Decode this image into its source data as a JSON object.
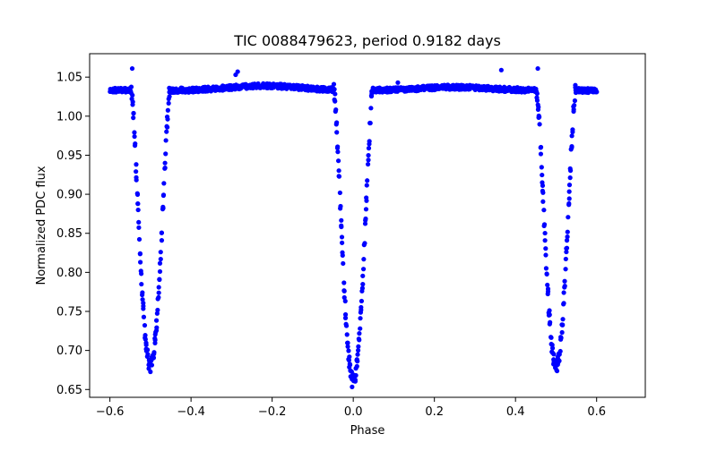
{
  "chart_data": {
    "type": "scatter",
    "title": "TIC 0088479623, period 0.9182 days",
    "xlabel": "Phase",
    "ylabel": "Normalized PDC flux",
    "xlim": [
      -0.65,
      0.72
    ],
    "ylim": [
      0.64,
      1.08
    ],
    "xticks": [
      -0.6,
      -0.4,
      -0.2,
      0.0,
      0.2,
      0.4,
      0.6
    ],
    "xtick_labels": [
      "−0.6",
      "−0.4",
      "−0.2",
      "0.0",
      "0.2",
      "0.4",
      "0.6"
    ],
    "yticks": [
      0.65,
      0.7,
      0.75,
      0.8,
      0.85,
      0.9,
      0.95,
      1.0,
      1.05
    ],
    "ytick_labels": [
      "0.65",
      "0.70",
      "0.75",
      "0.80",
      "0.85",
      "0.90",
      "0.95",
      "1.00",
      "1.05"
    ],
    "grid": false,
    "marker_color": "#0000ff",
    "light_curve": {
      "baseline": 1.033,
      "phase_range": [
        -0.6,
        0.6
      ],
      "primary_eclipse": {
        "phase": 0.0,
        "min_flux": 0.66,
        "half_width": 0.048
      },
      "secondary_eclipse": {
        "phase": 0.5,
        "min_flux": 0.68,
        "half_width": 0.048
      }
    },
    "outliers": [
      {
        "x": -0.545,
        "y": 1.061
      },
      {
        "x": -0.285,
        "y": 1.057
      },
      {
        "x": -0.29,
        "y": 1.053
      },
      {
        "x": 0.365,
        "y": 1.059
      },
      {
        "x": 0.455,
        "y": 1.061
      },
      {
        "x": 0.11,
        "y": 1.043
      }
    ]
  }
}
